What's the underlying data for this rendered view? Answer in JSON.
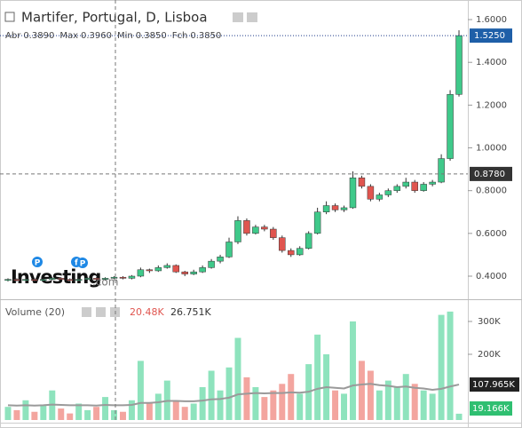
{
  "chart_data": [
    {
      "type": "candlestick",
      "title": "Martifer, Portugal, D, Lisboa",
      "ohlc_header": [
        [
          "Abr",
          "0.3890"
        ],
        [
          "Max",
          "0.3960"
        ],
        [
          "Min",
          "0.3850"
        ],
        [
          "Fch",
          "0.3850"
        ]
      ],
      "watermark": "Investing",
      "watermark_suffix": ".com",
      "badges": [
        "P",
        "f",
        "P"
      ],
      "up_color": "#3fc98a",
      "down_color": "#e0554f",
      "open": [
        0.38,
        0.385,
        0.38,
        0.385,
        0.38,
        0.385,
        0.39,
        0.385,
        0.38,
        0.385,
        0.39,
        0.385,
        0.39,
        0.395,
        0.39,
        0.4,
        0.43,
        0.425,
        0.44,
        0.45,
        0.42,
        0.41,
        0.42,
        0.44,
        0.47,
        0.49,
        0.56,
        0.66,
        0.6,
        0.63,
        0.62,
        0.58,
        0.52,
        0.5,
        0.53,
        0.6,
        0.7,
        0.73,
        0.71,
        0.72,
        0.86,
        0.82,
        0.76,
        0.78,
        0.8,
        0.82,
        0.84,
        0.8,
        0.83,
        0.84,
        0.95,
        1.25
      ],
      "high": [
        0.39,
        0.39,
        0.39,
        0.39,
        0.39,
        0.395,
        0.395,
        0.39,
        0.39,
        0.395,
        0.395,
        0.395,
        0.4,
        0.4,
        0.405,
        0.44,
        0.435,
        0.45,
        0.46,
        0.455,
        0.425,
        0.43,
        0.45,
        0.48,
        0.5,
        0.58,
        0.68,
        0.67,
        0.64,
        0.64,
        0.63,
        0.59,
        0.53,
        0.54,
        0.61,
        0.72,
        0.75,
        0.74,
        0.73,
        0.89,
        0.87,
        0.83,
        0.79,
        0.81,
        0.83,
        0.86,
        0.85,
        0.84,
        0.85,
        0.97,
        1.27,
        1.55
      ],
      "low": [
        0.375,
        0.375,
        0.375,
        0.375,
        0.375,
        0.38,
        0.38,
        0.375,
        0.375,
        0.38,
        0.38,
        0.38,
        0.385,
        0.385,
        0.385,
        0.395,
        0.415,
        0.42,
        0.435,
        0.415,
        0.4,
        0.405,
        0.415,
        0.435,
        0.46,
        0.485,
        0.55,
        0.59,
        0.595,
        0.61,
        0.57,
        0.51,
        0.49,
        0.495,
        0.525,
        0.595,
        0.69,
        0.7,
        0.7,
        0.715,
        0.81,
        0.75,
        0.75,
        0.77,
        0.79,
        0.81,
        0.79,
        0.795,
        0.82,
        0.835,
        0.94,
        1.24
      ],
      "close": [
        0.385,
        0.38,
        0.385,
        0.38,
        0.385,
        0.39,
        0.385,
        0.38,
        0.385,
        0.39,
        0.385,
        0.39,
        0.395,
        0.39,
        0.4,
        0.43,
        0.425,
        0.44,
        0.45,
        0.42,
        0.41,
        0.42,
        0.44,
        0.47,
        0.49,
        0.56,
        0.66,
        0.6,
        0.63,
        0.62,
        0.58,
        0.52,
        0.5,
        0.53,
        0.6,
        0.7,
        0.73,
        0.71,
        0.72,
        0.86,
        0.82,
        0.76,
        0.78,
        0.8,
        0.82,
        0.84,
        0.8,
        0.83,
        0.84,
        0.95,
        1.25,
        1.525
      ],
      "ylim": [
        0.3003,
        1.6916
      ],
      "yticks": [
        {
          "value": 0.4,
          "label": "0.4000"
        },
        {
          "value": 0.6,
          "label": "0.6000"
        },
        {
          "value": 0.8,
          "label": "0.8000"
        },
        {
          "value": 1.0,
          "label": "1.0000"
        },
        {
          "value": 1.2,
          "label": "1.2000"
        },
        {
          "value": 1.4,
          "label": "1.4000"
        },
        {
          "value": 1.6,
          "label": "1.6000"
        }
      ],
      "last_price": {
        "value": 1.525,
        "label": "1.5250"
      },
      "crosshair": {
        "value": 0.878,
        "label": "0.8780"
      }
    },
    {
      "type": "volume",
      "title": "Volume (20)",
      "header_values": [
        "20.48K",
        "26.751K"
      ],
      "up_color": "#8ee3bd",
      "down_color": "#f3a59f",
      "ma_color": "#9a9a9a",
      "values": [
        40000,
        30000,
        60000,
        25000,
        45000,
        90000,
        35000,
        20000,
        50000,
        30000,
        40000,
        70000,
        30000,
        25000,
        60000,
        180000,
        50000,
        80000,
        120000,
        60000,
        40000,
        50000,
        100000,
        150000,
        90000,
        160000,
        250000,
        130000,
        100000,
        70000,
        90000,
        110000,
        140000,
        80000,
        170000,
        260000,
        200000,
        90000,
        80000,
        300000,
        180000,
        150000,
        90000,
        120000,
        100000,
        140000,
        110000,
        90000,
        80000,
        320000,
        330000,
        19166
      ],
      "last_value_label": "19.166K",
      "ma": [
        45000,
        44000,
        45000,
        44000,
        45000,
        47000,
        46000,
        45000,
        45000,
        45000,
        44000,
        46000,
        45000,
        45000,
        46000,
        52000,
        52000,
        54000,
        58000,
        58000,
        57000,
        57000,
        59000,
        63000,
        64000,
        68000,
        78000,
        80000,
        82000,
        81000,
        82000,
        82000,
        84000,
        83000,
        86000,
        95000,
        100000,
        98000,
        96000,
        105000,
        108000,
        110000,
        106000,
        104000,
        100000,
        102000,
        98000,
        96000,
        92000,
        95000,
        102000,
        107965
      ],
      "last_ma_label": "107.965K",
      "ylim": [
        0,
        350000
      ],
      "yticks": [
        {
          "value": 200000,
          "label": "200K"
        },
        {
          "value": 300000,
          "label": "300K"
        }
      ]
    }
  ]
}
